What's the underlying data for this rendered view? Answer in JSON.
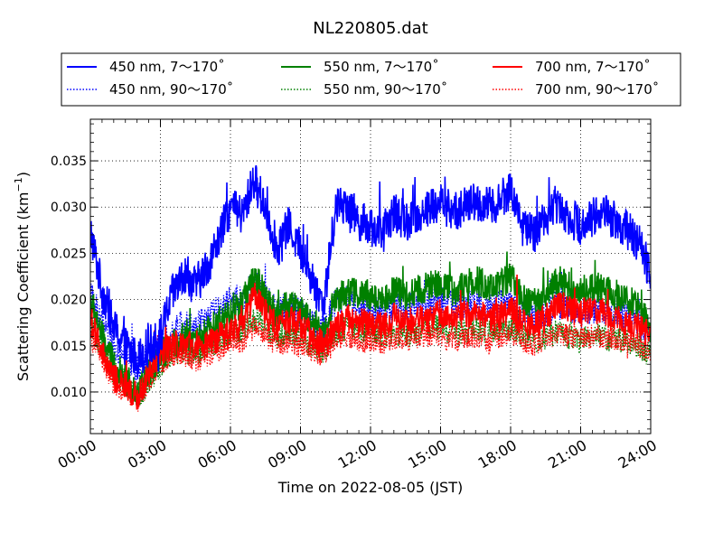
{
  "chart_data": {
    "type": "line",
    "title": "NL220805.dat",
    "xlabel": "Time on 2022-08-05 (JST)",
    "ylabel": "Scattering Coefficient (km",
    "ylabel_sup": "−1",
    "ylabel_close": ")",
    "xlim": [
      0,
      24
    ],
    "ylim": [
      0.0055,
      0.0395
    ],
    "grid": true,
    "legend_position": "top, above plot, 3 columns",
    "x_ticks": [
      {
        "value": 0,
        "label": "00:00"
      },
      {
        "value": 3,
        "label": "03:00"
      },
      {
        "value": 6,
        "label": "06:00"
      },
      {
        "value": 9,
        "label": "09:00"
      },
      {
        "value": 12,
        "label": "12:00"
      },
      {
        "value": 15,
        "label": "15:00"
      },
      {
        "value": 18,
        "label": "18:00"
      },
      {
        "value": 21,
        "label": "21:00"
      },
      {
        "value": 24,
        "label": "24:00"
      }
    ],
    "y_ticks": [
      {
        "value": 0.01,
        "label": "0.010"
      },
      {
        "value": 0.015,
        "label": "0.015"
      },
      {
        "value": 0.02,
        "label": "0.020"
      },
      {
        "value": 0.025,
        "label": "0.025"
      },
      {
        "value": 0.03,
        "label": "0.030"
      },
      {
        "value": 0.035,
        "label": "0.035"
      }
    ],
    "x": [
      0.0,
      0.5,
      1.0,
      1.5,
      2.0,
      2.5,
      3.0,
      3.5,
      4.0,
      4.5,
      5.0,
      5.5,
      6.0,
      6.5,
      7.0,
      7.5,
      8.0,
      8.5,
      9.0,
      9.5,
      10.0,
      10.5,
      11.0,
      11.5,
      12.0,
      12.5,
      13.0,
      13.5,
      14.0,
      14.5,
      15.0,
      15.5,
      16.0,
      16.5,
      17.0,
      17.5,
      18.0,
      18.5,
      19.0,
      19.5,
      20.0,
      20.5,
      21.0,
      21.5,
      22.0,
      22.5,
      23.0,
      23.5,
      24.0
    ],
    "series": [
      {
        "name": "450 nm, 7～170˚",
        "color": "#0000ff",
        "style": "solid",
        "noise": 0.0022,
        "values": [
          0.0275,
          0.021,
          0.017,
          0.015,
          0.0135,
          0.015,
          0.016,
          0.0205,
          0.0225,
          0.0215,
          0.0235,
          0.0265,
          0.03,
          0.029,
          0.033,
          0.03,
          0.0255,
          0.028,
          0.0255,
          0.022,
          0.0195,
          0.03,
          0.0305,
          0.0285,
          0.028,
          0.027,
          0.0295,
          0.0285,
          0.029,
          0.03,
          0.0305,
          0.0295,
          0.03,
          0.0305,
          0.03,
          0.0305,
          0.032,
          0.028,
          0.027,
          0.029,
          0.0305,
          0.029,
          0.028,
          0.029,
          0.0295,
          0.0285,
          0.0275,
          0.026,
          0.023
        ]
      },
      {
        "name": "450 nm, 90～170˚",
        "color": "#0000ff",
        "style": "dotted",
        "noise": 0.0016,
        "values": [
          0.0205,
          0.0175,
          0.015,
          0.014,
          0.0125,
          0.0135,
          0.015,
          0.0165,
          0.0175,
          0.017,
          0.018,
          0.019,
          0.02,
          0.02,
          0.022,
          0.0205,
          0.0185,
          0.0195,
          0.0185,
          0.0175,
          0.0165,
          0.02,
          0.02,
          0.019,
          0.019,
          0.0185,
          0.0195,
          0.019,
          0.0195,
          0.02,
          0.02,
          0.0195,
          0.0195,
          0.0195,
          0.019,
          0.0195,
          0.02,
          0.0185,
          0.018,
          0.0185,
          0.0195,
          0.019,
          0.0185,
          0.019,
          0.019,
          0.0185,
          0.018,
          0.0175,
          0.0165
        ]
      },
      {
        "name": "550 nm, 7～170˚",
        "color": "#008000",
        "style": "solid",
        "noise": 0.0017,
        "values": [
          0.02,
          0.016,
          0.013,
          0.0115,
          0.01,
          0.012,
          0.014,
          0.015,
          0.016,
          0.0155,
          0.0165,
          0.0175,
          0.019,
          0.0195,
          0.0225,
          0.0205,
          0.0185,
          0.0195,
          0.019,
          0.0175,
          0.0165,
          0.02,
          0.021,
          0.0205,
          0.0205,
          0.02,
          0.021,
          0.0205,
          0.021,
          0.0215,
          0.0215,
          0.021,
          0.0215,
          0.022,
          0.0215,
          0.0215,
          0.0225,
          0.02,
          0.0195,
          0.0205,
          0.022,
          0.0215,
          0.021,
          0.0215,
          0.021,
          0.0205,
          0.02,
          0.019,
          0.017
        ]
      },
      {
        "name": "550 nm, 90～170˚",
        "color": "#008000",
        "style": "dotted",
        "noise": 0.0014,
        "values": [
          0.017,
          0.0145,
          0.012,
          0.011,
          0.0095,
          0.011,
          0.013,
          0.014,
          0.0145,
          0.014,
          0.015,
          0.0155,
          0.0165,
          0.0165,
          0.018,
          0.017,
          0.016,
          0.0165,
          0.016,
          0.015,
          0.0145,
          0.0165,
          0.017,
          0.0165,
          0.0165,
          0.016,
          0.0165,
          0.016,
          0.0165,
          0.017,
          0.017,
          0.0165,
          0.0165,
          0.017,
          0.0165,
          0.0165,
          0.017,
          0.016,
          0.0155,
          0.016,
          0.0165,
          0.016,
          0.0155,
          0.016,
          0.016,
          0.0155,
          0.0155,
          0.015,
          0.014
        ]
      },
      {
        "name": "700 nm, 7～170˚",
        "color": "#ff0000",
        "style": "solid",
        "noise": 0.0016,
        "values": [
          0.018,
          0.014,
          0.0115,
          0.0105,
          0.0095,
          0.012,
          0.0145,
          0.015,
          0.0155,
          0.0145,
          0.015,
          0.016,
          0.017,
          0.0175,
          0.0205,
          0.0185,
          0.017,
          0.018,
          0.0175,
          0.016,
          0.015,
          0.017,
          0.018,
          0.0175,
          0.0175,
          0.017,
          0.018,
          0.0175,
          0.018,
          0.018,
          0.0185,
          0.018,
          0.0185,
          0.0185,
          0.018,
          0.018,
          0.019,
          0.0175,
          0.017,
          0.018,
          0.0195,
          0.019,
          0.0185,
          0.019,
          0.0185,
          0.018,
          0.0175,
          0.017,
          0.016
        ]
      },
      {
        "name": "700 nm, 90～170˚",
        "color": "#ff0000",
        "style": "dotted",
        "noise": 0.0013,
        "values": [
          0.016,
          0.0135,
          0.011,
          0.01,
          0.009,
          0.011,
          0.013,
          0.014,
          0.014,
          0.0135,
          0.014,
          0.0145,
          0.0155,
          0.0155,
          0.017,
          0.016,
          0.015,
          0.0155,
          0.015,
          0.0145,
          0.014,
          0.0155,
          0.016,
          0.0155,
          0.0155,
          0.015,
          0.016,
          0.0155,
          0.016,
          0.016,
          0.016,
          0.0155,
          0.016,
          0.016,
          0.0155,
          0.016,
          0.0165,
          0.0155,
          0.015,
          0.0155,
          0.0165,
          0.016,
          0.016,
          0.016,
          0.016,
          0.0155,
          0.0155,
          0.015,
          0.014
        ]
      }
    ]
  }
}
